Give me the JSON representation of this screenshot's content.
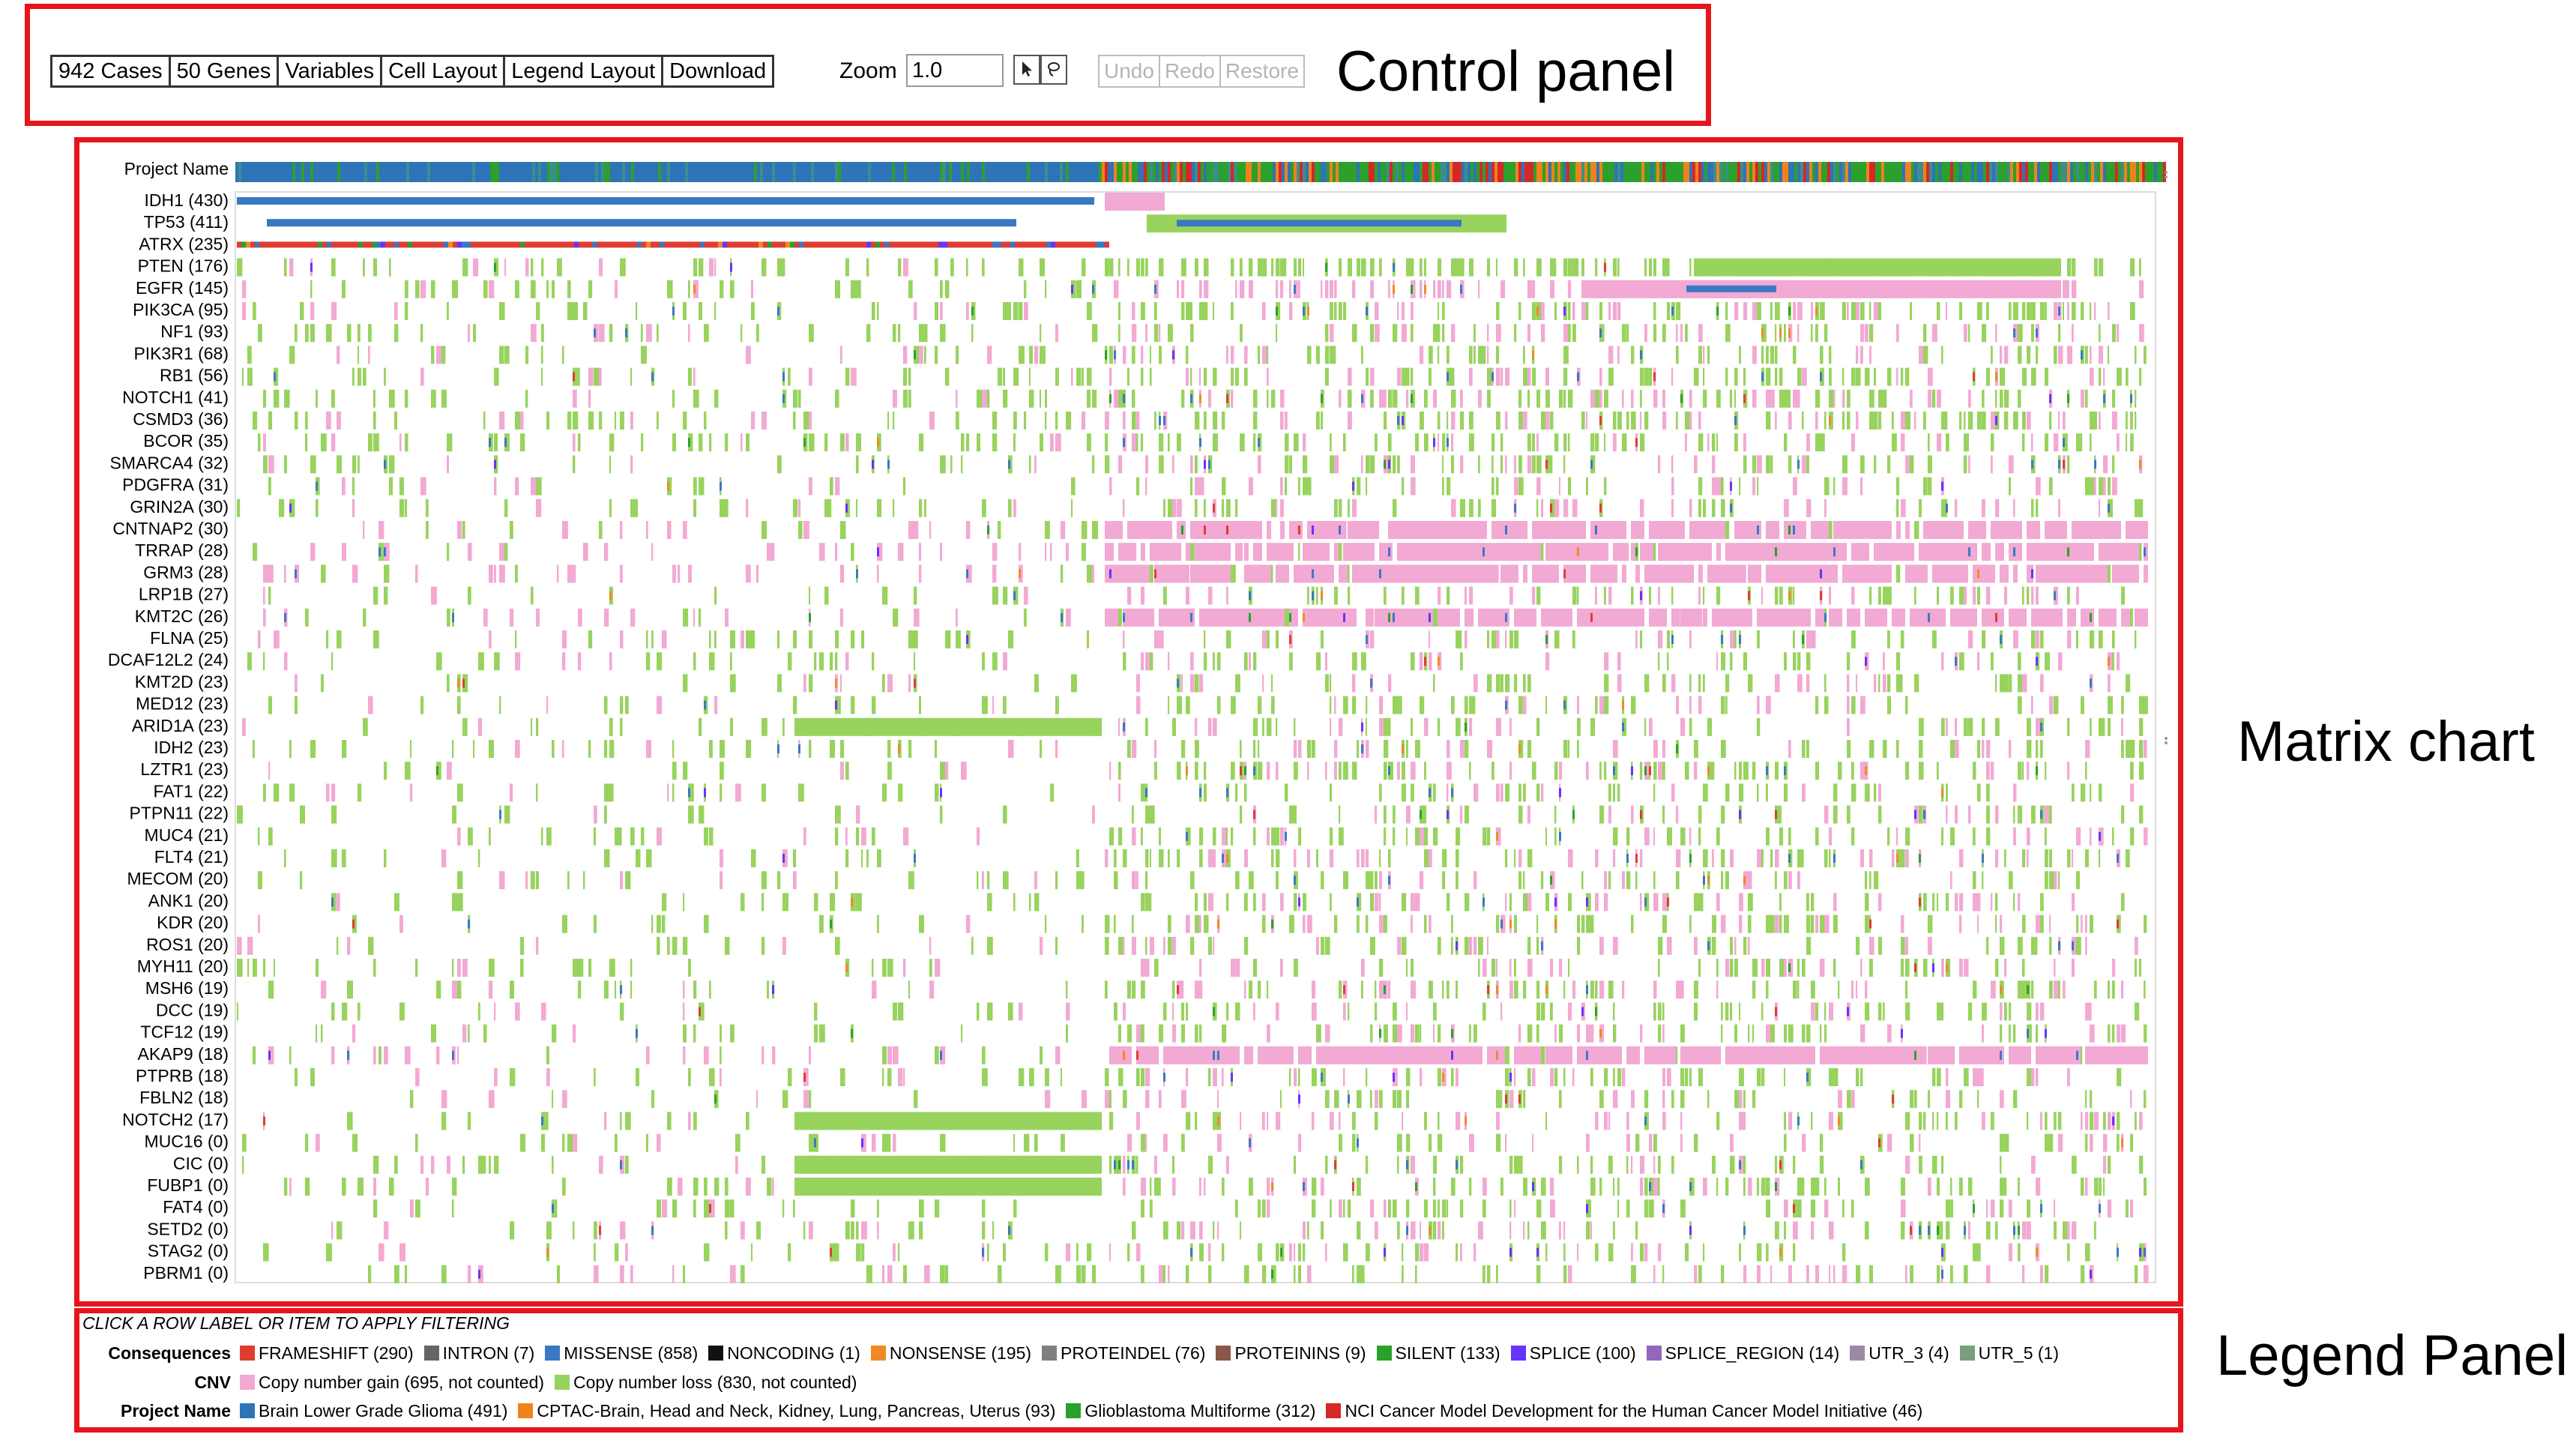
{
  "annotations": {
    "control_panel": "Control panel",
    "matrix_chart": "Matrix chart",
    "legend_panel": "Legend Panel"
  },
  "controls": {
    "buttons": [
      "942 Cases",
      "50 Genes",
      "Variables",
      "Cell Layout",
      "Legend Layout",
      "Download"
    ],
    "zoom_label": "Zoom",
    "zoom_value": "1.0",
    "pointer_icon": "cursor-arrow-icon",
    "lasso_icon": "lasso-icon",
    "history_buttons": [
      "Undo",
      "Redo",
      "Restore"
    ]
  },
  "matrix": {
    "project_row_label": "Project Name",
    "gene_rows": [
      "IDH1 (430)",
      "TP53 (411)",
      "ATRX (235)",
      "PTEN (176)",
      "EGFR (145)",
      "PIK3CA (95)",
      "NF1 (93)",
      "PIK3R1 (68)",
      "RB1 (56)",
      "NOTCH1 (41)",
      "CSMD3 (36)",
      "BCOR (35)",
      "SMARCA4 (32)",
      "PDGFRA (31)",
      "GRIN2A (30)",
      "CNTNAP2 (30)",
      "TRRAP (28)",
      "GRM3 (28)",
      "LRP1B (27)",
      "KMT2C (26)",
      "FLNA (25)",
      "DCAF12L2 (24)",
      "KMT2D (23)",
      "MED12 (23)",
      "ARID1A (23)",
      "IDH2 (23)",
      "LZTR1 (23)",
      "FAT1 (22)",
      "PTPN11 (22)",
      "MUC4 (21)",
      "FLT4 (21)",
      "MECOM (20)",
      "ANK1 (20)",
      "KDR (20)",
      "ROS1 (20)",
      "MYH11 (20)",
      "MSH6 (19)",
      "DCC (19)",
      "TCF12 (19)",
      "AKAP9 (18)",
      "PTPRB (18)",
      "FBLN2 (18)",
      "NOTCH2 (17)",
      "MUC16 (0)",
      "CIC (0)",
      "FUBP1 (0)",
      "FAT4 (0)",
      "SETD2 (0)",
      "STAG2 (0)",
      "PBRM1 (0)"
    ]
  },
  "legend": {
    "instruction": "CLICK A ROW LABEL OR ITEM TO APPLY FILTERING",
    "groups": [
      {
        "name": "Consequences",
        "items": [
          {
            "label": "FRAMESHIFT (290)",
            "color": "#e03c31"
          },
          {
            "label": "INTRON (7)",
            "color": "#656565"
          },
          {
            "label": "MISSENSE (858)",
            "color": "#3a78c3"
          },
          {
            "label": "NONCODING (1)",
            "color": "#111111"
          },
          {
            "label": "NONSENSE (195)",
            "color": "#f08a24"
          },
          {
            "label": "PROTEINDEL (76)",
            "color": "#7f7f7f"
          },
          {
            "label": "PROTEININS (9)",
            "color": "#8c564b"
          },
          {
            "label": "SILENT (133)",
            "color": "#2ca02c"
          },
          {
            "label": "SPLICE (100)",
            "color": "#6633ff"
          },
          {
            "label": "SPLICE_REGION (14)",
            "color": "#9467bd"
          },
          {
            "label": "UTR_3 (4)",
            "color": "#9c8aa5"
          },
          {
            "label": "UTR_5 (1)",
            "color": "#7a9f7a"
          }
        ]
      },
      {
        "name": "CNV",
        "items": [
          {
            "label": "Copy number gain (695, not counted)",
            "color": "#f2a9d3"
          },
          {
            "label": "Copy number loss (830, not counted)",
            "color": "#98d35e"
          }
        ]
      },
      {
        "name": "Project Name",
        "items": [
          {
            "label": "Brain Lower Grade Glioma (491)",
            "color": "#2f73b8"
          },
          {
            "label": "CPTAC-Brain, Head and Neck, Kidney, Lung, Pancreas, Uterus (93)",
            "color": "#f0821e"
          },
          {
            "label": "Glioblastoma Multiforme (312)",
            "color": "#2ca02c"
          },
          {
            "label": "NCI Cancer Model Development for the Human Cancer Model Initiative (46)",
            "color": "#d62728"
          }
        ]
      }
    ]
  },
  "colors": {
    "annotation_border": "#e8141c",
    "gain": "#f2a9d3",
    "loss": "#98d35e",
    "missense": "#3a78c3",
    "frameshift": "#e03c31",
    "nonsense": "#f08a24",
    "silent": "#2ca02c",
    "splice": "#6633ff",
    "project_lgg": "#2f73b8",
    "project_cptac": "#f0821e",
    "project_gbm": "#2ca02c",
    "project_hcmi": "#d62728"
  }
}
